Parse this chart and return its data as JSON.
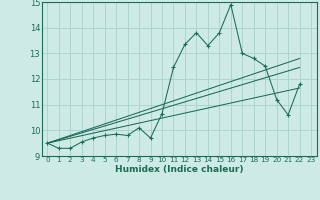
{
  "xlabel": "Humidex (Indice chaleur)",
  "bg_color": "#ceeae4",
  "grid_color": "#aed4cc",
  "line_color": "#1a6b5a",
  "xlim": [
    -0.5,
    23.5
  ],
  "ylim": [
    9,
    15
  ],
  "yticks": [
    9,
    10,
    11,
    12,
    13,
    14,
    15
  ],
  "xticks": [
    0,
    1,
    2,
    3,
    4,
    5,
    6,
    7,
    8,
    9,
    10,
    11,
    12,
    13,
    14,
    15,
    16,
    17,
    18,
    19,
    20,
    21,
    22,
    23
  ],
  "series1_x": [
    0,
    1,
    2,
    3,
    4,
    5,
    6,
    7,
    8,
    9,
    10,
    11,
    12,
    13,
    14,
    15,
    16,
    17,
    18,
    19,
    20,
    21,
    22
  ],
  "series1_y": [
    9.5,
    9.3,
    9.3,
    9.55,
    9.7,
    9.8,
    9.85,
    9.8,
    10.1,
    9.7,
    10.65,
    12.45,
    13.35,
    13.8,
    13.3,
    13.8,
    14.9,
    13.0,
    12.8,
    12.5,
    11.2,
    10.6,
    11.8
  ],
  "trend1_x": [
    0,
    22
  ],
  "trend1_y": [
    9.5,
    12.8
  ],
  "trend2_x": [
    0,
    22
  ],
  "trend2_y": [
    9.5,
    12.45
  ],
  "trend3_x": [
    0,
    22
  ],
  "trend3_y": [
    9.5,
    11.65
  ]
}
